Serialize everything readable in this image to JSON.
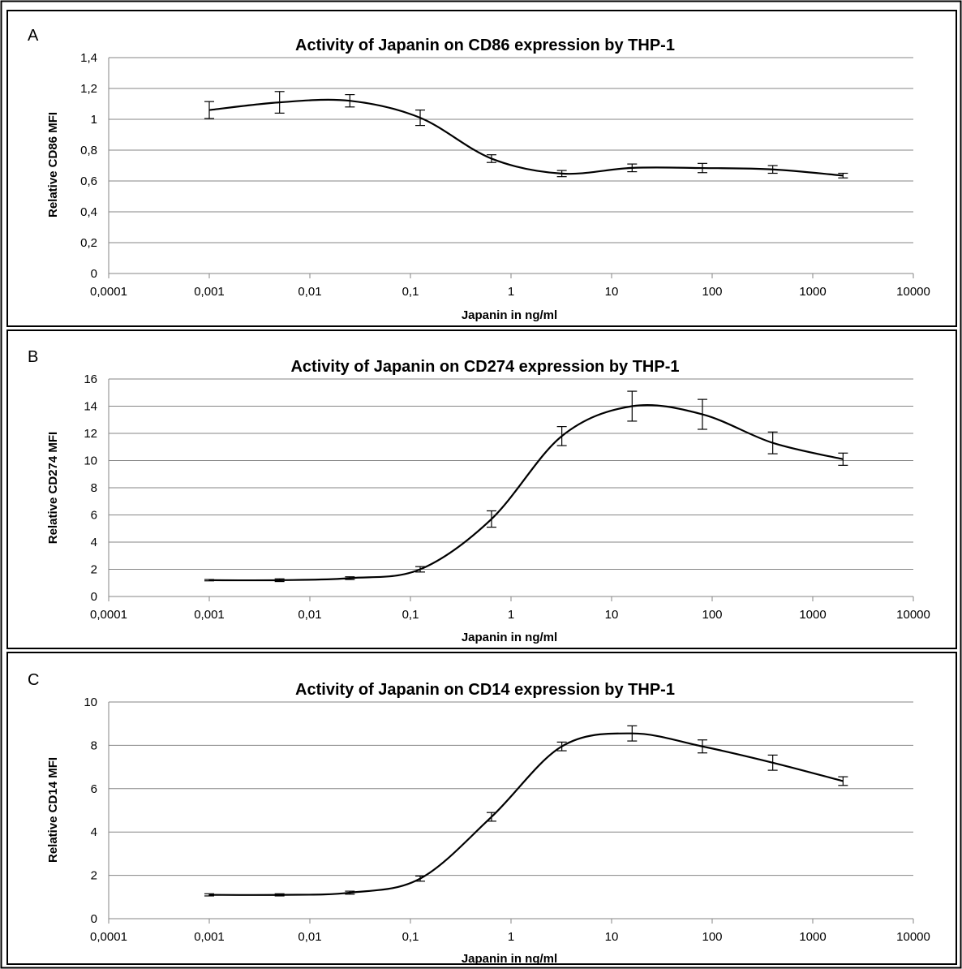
{
  "chart_data": [
    {
      "type": "line",
      "panel": "A",
      "title": "Activity of Japanin on CD86 expression by THP-1",
      "xlabel": "Japanin in ng/ml",
      "ylabel": "Relative CD86 MFI",
      "x_scale": "log",
      "xlim": [
        0.0001,
        10000
      ],
      "ylim": [
        0,
        1.4
      ],
      "x_ticks": [
        "0,0001",
        "0,001",
        "0,01",
        "0,1",
        "1",
        "10",
        "100",
        "1000",
        "10000"
      ],
      "y_ticks": [
        "0",
        "0,2",
        "0,4",
        "0,6",
        "0,8",
        "1",
        "1,2",
        "1,4"
      ],
      "grid": true,
      "legend": "none",
      "x": [
        0.001,
        0.005,
        0.025,
        0.125,
        0.64,
        3.2,
        16,
        80,
        400,
        2000
      ],
      "y": [
        1.06,
        1.11,
        1.12,
        1.01,
        0.745,
        0.648,
        0.685,
        0.684,
        0.675,
        0.635
      ],
      "err": [
        0.055,
        0.07,
        0.04,
        0.05,
        0.025,
        0.02,
        0.025,
        0.03,
        0.025,
        0.015
      ]
    },
    {
      "type": "line",
      "panel": "B",
      "title": "Activity of Japanin on CD274 expression by THP-1",
      "xlabel": "Japanin in ng/ml",
      "ylabel": "Relative CD274 MFI",
      "x_scale": "log",
      "xlim": [
        0.0001,
        10000
      ],
      "ylim": [
        0,
        16
      ],
      "x_ticks": [
        "0,0001",
        "0,001",
        "0,01",
        "0,1",
        "1",
        "10",
        "100",
        "1000",
        "10000"
      ],
      "y_ticks": [
        "0",
        "2",
        "4",
        "6",
        "8",
        "10",
        "12",
        "14",
        "16"
      ],
      "grid": true,
      "legend": "none",
      "x": [
        0.001,
        0.005,
        0.025,
        0.125,
        0.64,
        3.2,
        16,
        80,
        400,
        2000
      ],
      "y": [
        1.2,
        1.2,
        1.35,
        2.0,
        5.7,
        11.8,
        14.0,
        13.4,
        11.3,
        10.1
      ],
      "err": [
        0.05,
        0.1,
        0.1,
        0.2,
        0.6,
        0.7,
        1.1,
        1.1,
        0.8,
        0.45
      ]
    },
    {
      "type": "line",
      "panel": "C",
      "title": "Activity of Japanin on CD14 expression by THP-1",
      "xlabel": "Japanin in ng/ml",
      "ylabel": "Relative CD14 MFI",
      "x_scale": "log",
      "xlim": [
        0.0001,
        10000
      ],
      "ylim": [
        0,
        10
      ],
      "x_ticks": [
        "0,0001",
        "0,001",
        "0,01",
        "0,1",
        "1",
        "10",
        "100",
        "1000",
        "10000"
      ],
      "y_ticks": [
        "0",
        "2",
        "4",
        "6",
        "8",
        "10"
      ],
      "grid": true,
      "legend": "none",
      "x": [
        0.001,
        0.005,
        0.025,
        0.125,
        0.64,
        3.2,
        16,
        80,
        400,
        2000
      ],
      "y": [
        1.1,
        1.1,
        1.2,
        1.85,
        4.7,
        7.95,
        8.55,
        7.95,
        7.2,
        6.35
      ],
      "err": [
        0.05,
        0.05,
        0.07,
        0.12,
        0.2,
        0.2,
        0.35,
        0.3,
        0.35,
        0.2
      ]
    }
  ]
}
